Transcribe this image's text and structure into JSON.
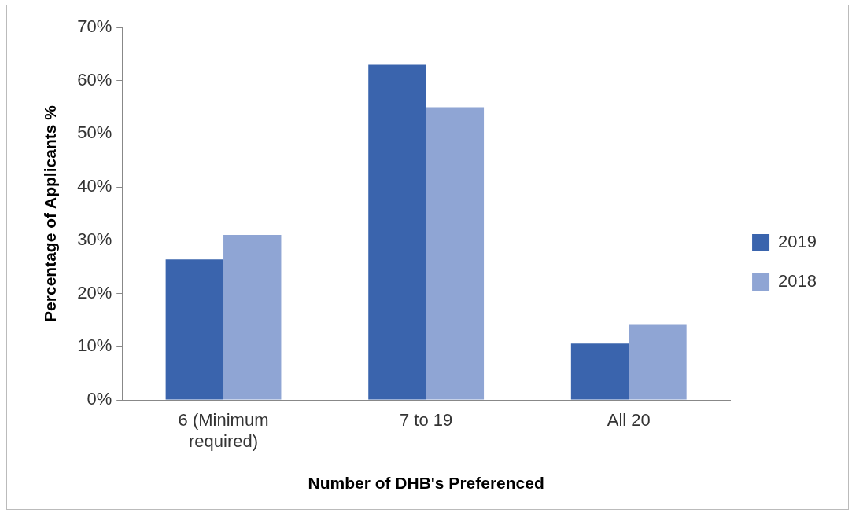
{
  "chart_data": {
    "type": "bar",
    "xlabel": "Number of DHB's Preferenced",
    "ylabel": "Percentage of Applicants %",
    "categories": [
      "6 (Minimum required)",
      "7 to 19",
      "All 20"
    ],
    "series": [
      {
        "name": "2019",
        "color": "#3a64ad",
        "values": [
          26.4,
          63,
          10.6
        ]
      },
      {
        "name": "2018",
        "color": "#8fa5d4",
        "values": [
          31,
          55,
          14.1
        ]
      }
    ],
    "ylim": [
      0,
      70
    ],
    "yticks": [
      {
        "value": 0,
        "label": "0%"
      },
      {
        "value": 10,
        "label": "10%"
      },
      {
        "value": 20,
        "label": "20%"
      },
      {
        "value": 30,
        "label": "30%"
      },
      {
        "value": 40,
        "label": "40%"
      },
      {
        "value": 50,
        "label": "50%"
      },
      {
        "value": 60,
        "label": "60%"
      },
      {
        "value": 70,
        "label": "70%"
      }
    ],
    "grid": false,
    "legend": "right"
  }
}
